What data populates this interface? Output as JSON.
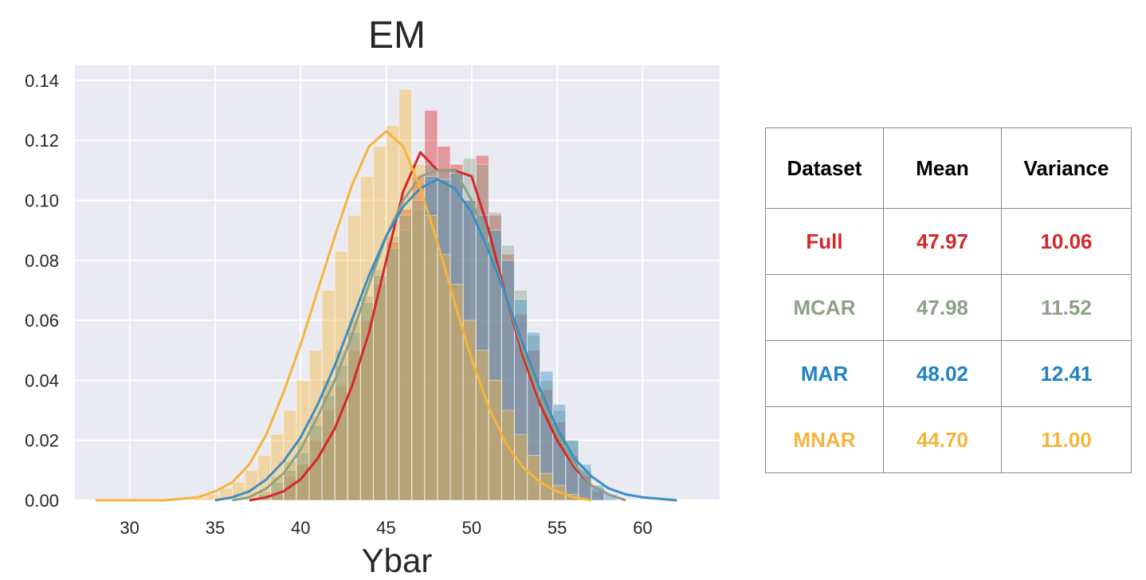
{
  "chart_data": {
    "type": "histogram",
    "title": "EM",
    "xlabel": "Ybar",
    "ylabel": "",
    "xlim": [
      26.8,
      64.5
    ],
    "ylim": [
      0,
      0.145
    ],
    "xticks": [
      30,
      35,
      40,
      45,
      50,
      55,
      60
    ],
    "yticks": [
      0.0,
      0.02,
      0.04,
      0.06,
      0.08,
      0.1,
      0.12,
      0.14
    ],
    "ytick_labels": [
      "0.00",
      "0.02",
      "0.04",
      "0.06",
      "0.08",
      "0.10",
      "0.12",
      "0.14"
    ],
    "grid": true,
    "series": [
      {
        "name": "Full",
        "color": "#d62728",
        "bin_width": 0.75,
        "bars": [
          [
            38.25,
            0.002
          ],
          [
            39.0,
            0.008
          ],
          [
            39.75,
            0.012
          ],
          [
            40.5,
            0.02
          ],
          [
            41.25,
            0.03
          ],
          [
            42.0,
            0.038
          ],
          [
            42.75,
            0.05
          ],
          [
            43.5,
            0.06
          ],
          [
            44.25,
            0.072
          ],
          [
            45.0,
            0.086
          ],
          [
            45.75,
            0.097
          ],
          [
            46.5,
            0.108
          ],
          [
            47.25,
            0.13
          ],
          [
            48.0,
            0.118
          ],
          [
            48.75,
            0.112
          ],
          [
            49.5,
            0.1
          ],
          [
            50.25,
            0.115
          ],
          [
            51.0,
            0.095
          ],
          [
            51.75,
            0.082
          ],
          [
            52.5,
            0.062
          ],
          [
            53.25,
            0.05
          ],
          [
            54.0,
            0.037
          ],
          [
            54.75,
            0.026
          ],
          [
            55.5,
            0.015
          ],
          [
            56.25,
            0.008
          ],
          [
            57.0,
            0.003
          ]
        ],
        "kde": [
          [
            37.0,
            0.0
          ],
          [
            38.0,
            0.001
          ],
          [
            39.0,
            0.003
          ],
          [
            40.0,
            0.007
          ],
          [
            41.0,
            0.014
          ],
          [
            42.0,
            0.024
          ],
          [
            43.0,
            0.038
          ],
          [
            44.0,
            0.056
          ],
          [
            45.0,
            0.08
          ],
          [
            46.0,
            0.103
          ],
          [
            47.0,
            0.116
          ],
          [
            47.5,
            0.113
          ],
          [
            48.0,
            0.11
          ],
          [
            49.0,
            0.11
          ],
          [
            50.0,
            0.108
          ],
          [
            51.0,
            0.09
          ],
          [
            52.0,
            0.068
          ],
          [
            53.0,
            0.048
          ],
          [
            54.0,
            0.032
          ],
          [
            55.0,
            0.02
          ],
          [
            56.0,
            0.011
          ],
          [
            57.0,
            0.005
          ],
          [
            58.0,
            0.002
          ],
          [
            59.0,
            0.0
          ]
        ]
      },
      {
        "name": "MCAR",
        "color": "#8ba286",
        "bin_width": 0.75,
        "bars": [
          [
            37.5,
            0.003
          ],
          [
            38.25,
            0.008
          ],
          [
            39.0,
            0.013
          ],
          [
            39.75,
            0.02
          ],
          [
            40.5,
            0.028
          ],
          [
            41.25,
            0.04
          ],
          [
            42.0,
            0.05
          ],
          [
            42.75,
            0.06
          ],
          [
            43.5,
            0.068
          ],
          [
            44.25,
            0.077
          ],
          [
            45.0,
            0.088
          ],
          [
            45.75,
            0.09
          ],
          [
            46.5,
            0.097
          ],
          [
            47.25,
            0.112
          ],
          [
            48.0,
            0.11
          ],
          [
            48.75,
            0.11
          ],
          [
            49.5,
            0.114
          ],
          [
            50.25,
            0.112
          ],
          [
            51.0,
            0.096
          ],
          [
            51.75,
            0.085
          ],
          [
            52.5,
            0.07
          ],
          [
            53.25,
            0.055
          ],
          [
            54.0,
            0.04
          ],
          [
            54.75,
            0.03
          ],
          [
            55.5,
            0.02
          ],
          [
            56.25,
            0.01
          ],
          [
            57.0,
            0.004
          ]
        ],
        "kde": [
          [
            36.0,
            0.0
          ],
          [
            37.0,
            0.001
          ],
          [
            38.0,
            0.004
          ],
          [
            39.0,
            0.009
          ],
          [
            40.0,
            0.017
          ],
          [
            41.0,
            0.028
          ],
          [
            42.0,
            0.04
          ],
          [
            43.0,
            0.055
          ],
          [
            44.0,
            0.072
          ],
          [
            45.0,
            0.088
          ],
          [
            46.0,
            0.1
          ],
          [
            47.0,
            0.108
          ],
          [
            48.0,
            0.11
          ],
          [
            49.0,
            0.11
          ],
          [
            50.0,
            0.1
          ],
          [
            51.0,
            0.085
          ],
          [
            52.0,
            0.068
          ],
          [
            53.0,
            0.05
          ],
          [
            54.0,
            0.034
          ],
          [
            55.0,
            0.022
          ],
          [
            56.0,
            0.012
          ],
          [
            57.0,
            0.005
          ],
          [
            58.0,
            0.002
          ],
          [
            59.0,
            0.0
          ]
        ]
      },
      {
        "name": "MAR",
        "color": "#3b8ec4",
        "bin_width": 0.75,
        "bars": [
          [
            37.5,
            0.002
          ],
          [
            38.25,
            0.006
          ],
          [
            39.0,
            0.01
          ],
          [
            39.75,
            0.016
          ],
          [
            40.5,
            0.025
          ],
          [
            41.25,
            0.035
          ],
          [
            42.0,
            0.045
          ],
          [
            42.75,
            0.056
          ],
          [
            43.5,
            0.066
          ],
          [
            44.25,
            0.075
          ],
          [
            45.0,
            0.084
          ],
          [
            45.75,
            0.095
          ],
          [
            46.5,
            0.1
          ],
          [
            47.25,
            0.108
          ],
          [
            48.0,
            0.107
          ],
          [
            48.75,
            0.109
          ],
          [
            49.5,
            0.1
          ],
          [
            50.25,
            0.095
          ],
          [
            51.0,
            0.09
          ],
          [
            51.75,
            0.08
          ],
          [
            52.5,
            0.067
          ],
          [
            53.25,
            0.056
          ],
          [
            54.0,
            0.043
          ],
          [
            54.75,
            0.032
          ],
          [
            55.5,
            0.02
          ],
          [
            56.25,
            0.012
          ],
          [
            57.0,
            0.005
          ],
          [
            57.75,
            0.002
          ]
        ],
        "kde": [
          [
            35.0,
            0.0
          ],
          [
            36.0,
            0.001
          ],
          [
            37.0,
            0.003
          ],
          [
            38.0,
            0.007
          ],
          [
            39.0,
            0.013
          ],
          [
            40.0,
            0.021
          ],
          [
            41.0,
            0.032
          ],
          [
            42.0,
            0.045
          ],
          [
            43.0,
            0.06
          ],
          [
            44.0,
            0.075
          ],
          [
            45.0,
            0.088
          ],
          [
            46.0,
            0.098
          ],
          [
            47.0,
            0.104
          ],
          [
            48.0,
            0.107
          ],
          [
            49.0,
            0.104
          ],
          [
            50.0,
            0.096
          ],
          [
            51.0,
            0.083
          ],
          [
            52.0,
            0.068
          ],
          [
            53.0,
            0.052
          ],
          [
            54.0,
            0.037
          ],
          [
            55.0,
            0.024
          ],
          [
            56.0,
            0.014
          ],
          [
            57.0,
            0.008
          ],
          [
            58.0,
            0.004
          ],
          [
            59.0,
            0.002
          ],
          [
            60.0,
            0.001
          ],
          [
            62.0,
            0.0
          ]
        ]
      },
      {
        "name": "MNAR",
        "color": "#f5b43c",
        "bin_width": 0.75,
        "bars": [
          [
            33.75,
            0.001
          ],
          [
            34.5,
            0.002
          ],
          [
            35.25,
            0.004
          ],
          [
            36.0,
            0.006
          ],
          [
            36.75,
            0.01
          ],
          [
            37.5,
            0.015
          ],
          [
            38.25,
            0.022
          ],
          [
            39.0,
            0.03
          ],
          [
            39.75,
            0.04
          ],
          [
            40.5,
            0.05
          ],
          [
            41.25,
            0.07
          ],
          [
            42.0,
            0.083
          ],
          [
            42.75,
            0.095
          ],
          [
            43.5,
            0.108
          ],
          [
            44.25,
            0.118
          ],
          [
            45.0,
            0.125
          ],
          [
            45.75,
            0.137
          ],
          [
            46.5,
            0.112
          ],
          [
            47.25,
            0.095
          ],
          [
            48.0,
            0.082
          ],
          [
            48.75,
            0.072
          ],
          [
            49.5,
            0.06
          ],
          [
            50.25,
            0.05
          ],
          [
            51.0,
            0.04
          ],
          [
            51.75,
            0.03
          ],
          [
            52.5,
            0.022
          ],
          [
            53.25,
            0.015
          ],
          [
            54.0,
            0.009
          ],
          [
            54.75,
            0.005
          ],
          [
            55.5,
            0.002
          ]
        ],
        "kde": [
          [
            28.0,
            0.0
          ],
          [
            32.0,
            0.0
          ],
          [
            34.0,
            0.001
          ],
          [
            35.0,
            0.003
          ],
          [
            36.0,
            0.006
          ],
          [
            37.0,
            0.012
          ],
          [
            38.0,
            0.022
          ],
          [
            39.0,
            0.036
          ],
          [
            40.0,
            0.052
          ],
          [
            41.0,
            0.07
          ],
          [
            42.0,
            0.088
          ],
          [
            43.0,
            0.105
          ],
          [
            44.0,
            0.118
          ],
          [
            45.0,
            0.123
          ],
          [
            46.0,
            0.118
          ],
          [
            47.0,
            0.104
          ],
          [
            48.0,
            0.086
          ],
          [
            49.0,
            0.066
          ],
          [
            50.0,
            0.047
          ],
          [
            51.0,
            0.031
          ],
          [
            52.0,
            0.019
          ],
          [
            53.0,
            0.011
          ],
          [
            54.0,
            0.006
          ],
          [
            55.0,
            0.003
          ],
          [
            56.0,
            0.001
          ],
          [
            57.0,
            0.0
          ]
        ]
      }
    ]
  },
  "table": {
    "headers": [
      "Dataset",
      "Mean",
      "Variance"
    ],
    "rows": [
      {
        "dataset": "Full",
        "mean": "47.97",
        "variance": "10.06",
        "color": "#d62728"
      },
      {
        "dataset": "MCAR",
        "mean": "47.98",
        "variance": "11.52",
        "color": "#8ba286"
      },
      {
        "dataset": "MAR",
        "mean": "48.02",
        "variance": "12.41",
        "color": "#1f82c4"
      },
      {
        "dataset": "MNAR",
        "mean": "44.70",
        "variance": "11.00",
        "color": "#f5b43c"
      }
    ]
  }
}
